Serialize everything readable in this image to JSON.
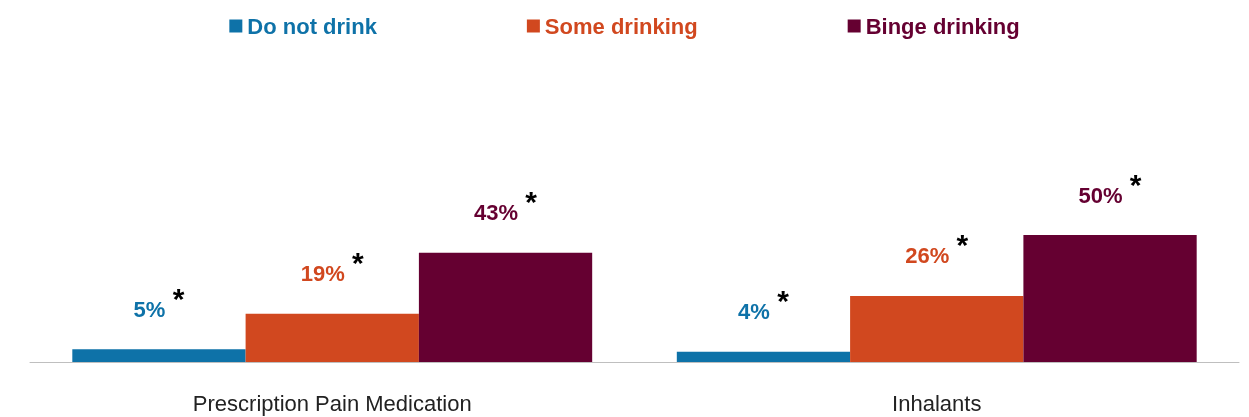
{
  "chart_data": {
    "type": "bar",
    "categories": [
      "Prescription Pain Medication",
      "Inhalants"
    ],
    "series": [
      {
        "name": "Do not drink",
        "color": "#0e72a8",
        "values": [
          5,
          4
        ],
        "value_labels": [
          "5%",
          "4%"
        ]
      },
      {
        "name": "Some drinking",
        "color": "#d1481f",
        "values": [
          19,
          26
        ],
        "value_labels": [
          "19%",
          "26%"
        ]
      },
      {
        "name": "Binge drinking",
        "color": "#650031",
        "values": [
          43,
          50
        ],
        "value_labels": [
          "43%",
          "50%"
        ]
      }
    ],
    "annotations": [
      "*",
      "*",
      "*",
      "*",
      "*",
      "*"
    ],
    "legend": "top",
    "grid": false
  }
}
